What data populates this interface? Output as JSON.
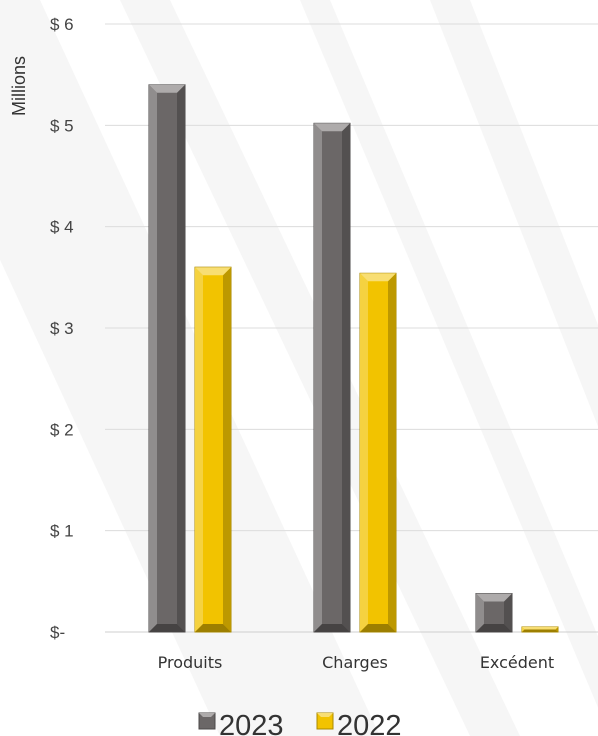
{
  "chart_data": {
    "type": "bar",
    "unit_label": "Millions",
    "categories": [
      "Produits",
      "Charges",
      "Excédent"
    ],
    "series": [
      {
        "name": "2023",
        "values": [
          5.4,
          5.02,
          0.38
        ],
        "color": "#6b6767"
      },
      {
        "name": "2022",
        "values": [
          3.6,
          3.54,
          0.05
        ],
        "color": "#f2c300"
      }
    ],
    "yticks": [
      {
        "value": 0,
        "label": "$-"
      },
      {
        "value": 1,
        "label": "$ 1"
      },
      {
        "value": 2,
        "label": "$ 2"
      },
      {
        "value": 3,
        "label": "$ 3"
      },
      {
        "value": 4,
        "label": "$ 4"
      },
      {
        "value": 5,
        "label": "$ 5"
      },
      {
        "value": 6,
        "label": "$ 6"
      }
    ],
    "ylim": [
      0,
      6
    ],
    "grid": true,
    "legend": "bottom-center"
  }
}
